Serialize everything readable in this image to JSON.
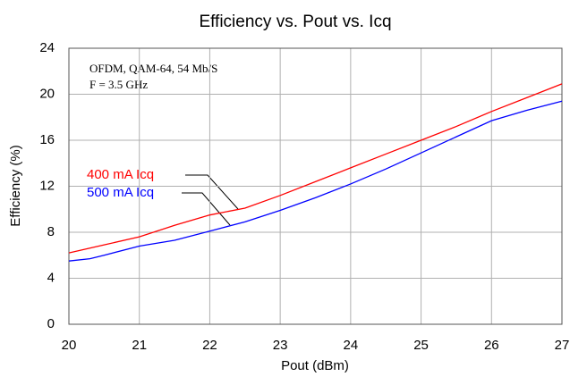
{
  "chart_data": {
    "type": "line",
    "title": "Efficiency vs. Pout vs. Icq",
    "xlabel": "Pout (dBm)",
    "ylabel": "Efficiency (%)",
    "annotations": [
      "OFDM, QAM-64, 54 Mb/S",
      "F = 3.5 GHz"
    ],
    "xlim": [
      20,
      27
    ],
    "xticks": [
      20,
      21,
      22,
      23,
      24,
      25,
      26,
      27
    ],
    "ylim": [
      0,
      24
    ],
    "yticks": [
      0,
      4,
      8,
      12,
      16,
      20,
      24
    ],
    "grid": true,
    "series": [
      {
        "name": "400 mA Icq",
        "color": "#ff0000",
        "x": [
          20,
          20.5,
          21,
          21.5,
          22,
          22.5,
          23,
          23.5,
          24,
          24.5,
          25,
          25.5,
          26,
          26.5,
          27
        ],
        "values": [
          6.2,
          6.9,
          7.6,
          8.6,
          9.5,
          10.1,
          11.2,
          12.4,
          13.6,
          14.8,
          16.0,
          17.2,
          18.5,
          19.7,
          20.9
        ]
      },
      {
        "name": "500 mA Icq",
        "color": "#0000ff",
        "x": [
          20,
          20.3,
          20.5,
          21,
          21.5,
          22,
          22.5,
          23,
          23.5,
          24,
          24.5,
          25,
          25.5,
          26,
          26.5,
          27
        ],
        "values": [
          5.5,
          5.7,
          6.0,
          6.8,
          7.3,
          8.1,
          8.9,
          9.9,
          11.0,
          12.2,
          13.5,
          14.9,
          16.3,
          17.7,
          18.6,
          19.4
        ]
      }
    ]
  }
}
